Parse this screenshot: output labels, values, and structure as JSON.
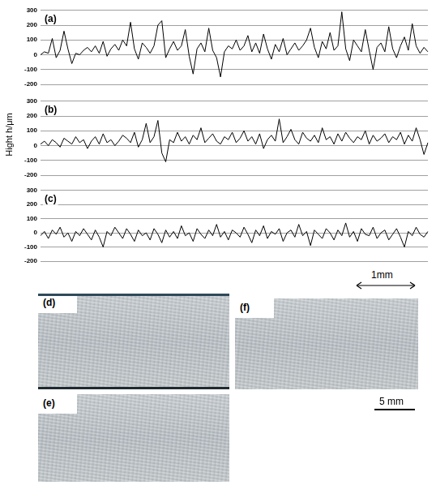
{
  "chart_data": [
    {
      "type": "line",
      "title": "(a)",
      "color": "#000000",
      "line_style": "solid",
      "grid": true,
      "tick_labels": "y",
      "ylim": [
        -200,
        300
      ],
      "yticks": [
        -200,
        -100,
        0,
        100,
        200,
        300
      ],
      "categories": [
        null,
        null,
        null,
        null,
        null,
        null,
        null,
        null,
        null,
        null,
        null,
        null,
        null,
        null,
        null,
        null,
        null,
        null,
        null,
        null,
        null,
        null,
        null,
        null,
        null,
        null,
        null,
        null,
        null,
        null,
        null,
        null,
        null,
        null,
        null,
        null,
        null,
        null,
        null,
        null,
        null,
        null,
        null,
        null,
        null,
        null,
        null,
        null,
        null,
        null,
        null,
        null,
        null,
        null,
        null,
        null,
        null,
        null,
        null,
        null,
        null,
        null,
        null,
        null,
        null,
        null,
        null,
        null,
        null,
        null,
        null,
        null,
        null,
        null,
        null,
        null,
        null,
        null,
        null,
        null,
        null,
        null,
        null,
        null,
        null,
        null,
        null,
        null,
        null,
        null,
        null,
        null,
        null,
        null,
        null,
        null,
        null,
        null,
        null,
        null
      ],
      "values": [
        0,
        20,
        10,
        110,
        -20,
        30,
        160,
        40,
        -60,
        10,
        0,
        30,
        50,
        20,
        60,
        10,
        90,
        -10,
        40,
        70,
        30,
        100,
        60,
        220,
        40,
        -30,
        80,
        50,
        10,
        60,
        200,
        230,
        -20,
        40,
        90,
        30,
        60,
        170,
        -10,
        -130,
        40,
        80,
        20,
        180,
        30,
        -20,
        -150,
        20,
        60,
        40,
        100,
        30,
        60,
        130,
        20,
        80,
        10,
        140,
        40,
        -30,
        70,
        20,
        110,
        0,
        40,
        80,
        30,
        60,
        100,
        180,
        50,
        -20,
        90,
        40,
        150,
        30,
        60,
        290,
        40,
        -40,
        100,
        60,
        20,
        170,
        30,
        -100,
        50,
        80,
        20,
        190,
        40,
        -20,
        60,
        120,
        30,
        210,
        60,
        10,
        50,
        20
      ]
    },
    {
      "type": "line",
      "title": "(b)",
      "color": "#000000",
      "line_style": "solid",
      "grid": true,
      "tick_labels": "y",
      "ylim": [
        -200,
        300
      ],
      "yticks": [
        -200,
        -100,
        0,
        100,
        200,
        300
      ],
      "categories": [
        null,
        null,
        null,
        null,
        null,
        null,
        null,
        null,
        null,
        null,
        null,
        null,
        null,
        null,
        null,
        null,
        null,
        null,
        null,
        null,
        null,
        null,
        null,
        null,
        null,
        null,
        null,
        null,
        null,
        null,
        null,
        null,
        null,
        null,
        null,
        null,
        null,
        null,
        null,
        null,
        null,
        null,
        null,
        null,
        null,
        null,
        null,
        null,
        null,
        null,
        null,
        null,
        null,
        null,
        null,
        null,
        null,
        null,
        null,
        null,
        null,
        null,
        null,
        null,
        null,
        null,
        null,
        null,
        null,
        null,
        null,
        null,
        null,
        null,
        null,
        null,
        null,
        null,
        null,
        null,
        null,
        null,
        null,
        null,
        null,
        null,
        null,
        null,
        null,
        null,
        null,
        null,
        null,
        null,
        null,
        null,
        null,
        null,
        null,
        null
      ],
      "values": [
        10,
        30,
        0,
        40,
        20,
        -10,
        50,
        30,
        10,
        60,
        20,
        40,
        -20,
        30,
        60,
        10,
        80,
        20,
        40,
        0,
        30,
        70,
        50,
        20,
        90,
        -10,
        40,
        150,
        20,
        60,
        170,
        -50,
        -110,
        40,
        20,
        90,
        30,
        60,
        10,
        70,
        40,
        120,
        20,
        50,
        80,
        30,
        10,
        60,
        40,
        90,
        20,
        50,
        100,
        30,
        60,
        10,
        80,
        -20,
        40,
        70,
        30,
        180,
        20,
        60,
        110,
        40,
        10,
        90,
        50,
        30,
        70,
        20,
        120,
        40,
        60,
        10,
        80,
        30,
        90,
        50,
        20,
        60,
        40,
        100,
        10,
        70,
        30,
        50,
        80,
        20,
        60,
        40,
        90,
        10,
        70,
        30,
        120,
        40,
        -60,
        20
      ]
    },
    {
      "type": "line",
      "title": "(c)",
      "color": "#000000",
      "line_style": "solid",
      "grid": true,
      "tick_labels": "y",
      "ylim": [
        -200,
        300
      ],
      "yticks": [
        -200,
        -100,
        0,
        100,
        200,
        300
      ],
      "categories": [
        null,
        null,
        null,
        null,
        null,
        null,
        null,
        null,
        null,
        null,
        null,
        null,
        null,
        null,
        null,
        null,
        null,
        null,
        null,
        null,
        null,
        null,
        null,
        null,
        null,
        null,
        null,
        null,
        null,
        null,
        null,
        null,
        null,
        null,
        null,
        null,
        null,
        null,
        null,
        null,
        null,
        null,
        null,
        null,
        null,
        null,
        null,
        null,
        null,
        null,
        null,
        null,
        null,
        null,
        null,
        null,
        null,
        null,
        null,
        null,
        null,
        null,
        null,
        null,
        null,
        null,
        null,
        null,
        null,
        null,
        null,
        null,
        null,
        null,
        null,
        null,
        null,
        null,
        null,
        null,
        null,
        null,
        null,
        null,
        null,
        null,
        null,
        null,
        null,
        null,
        null,
        null,
        null,
        null,
        null,
        null,
        null,
        null,
        null,
        null
      ],
      "values": [
        -20,
        10,
        -40,
        20,
        -10,
        40,
        -30,
        0,
        -60,
        10,
        -20,
        30,
        -10,
        -50,
        20,
        -30,
        -100,
        10,
        -20,
        40,
        0,
        -40,
        30,
        -10,
        -60,
        20,
        -20,
        0,
        -50,
        30,
        -10,
        -70,
        20,
        -30,
        10,
        -40,
        50,
        -20,
        0,
        -60,
        30,
        -10,
        -40,
        20,
        -20,
        60,
        -30,
        10,
        -50,
        20,
        0,
        -30,
        40,
        -10,
        -70,
        20,
        -20,
        50,
        -40,
        10,
        -10,
        30,
        -60,
        0,
        20,
        -30,
        60,
        -20,
        10,
        -90,
        20,
        -10,
        -40,
        30,
        0,
        -50,
        20,
        -20,
        70,
        -30,
        10,
        -60,
        30,
        -10,
        -20,
        40,
        -40,
        0,
        20,
        -50,
        -10,
        30,
        -30,
        -100,
        10,
        -20,
        40,
        -10,
        -30,
        10
      ]
    }
  ],
  "figure": {
    "y_label": "Hight h/μm",
    "profile_scale_bar": "1mm",
    "photo_scale_bar": "5 mm",
    "photos": [
      {
        "label": "(d)"
      },
      {
        "label": "(f)"
      },
      {
        "label": "(e)"
      }
    ]
  }
}
